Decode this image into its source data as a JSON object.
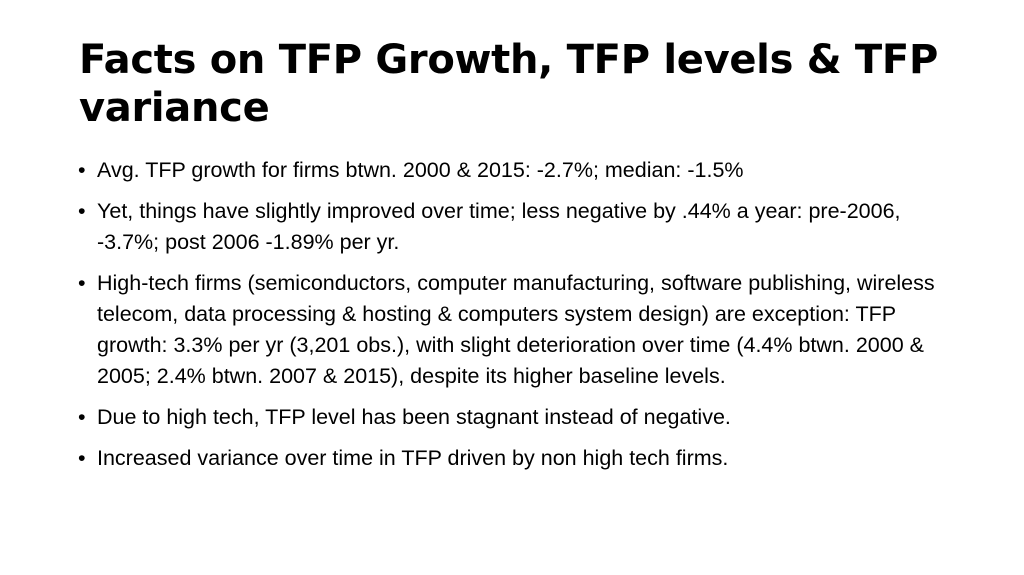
{
  "slide": {
    "title": "Facts on TFP Growth, TFP levels & TFP variance",
    "bullet_glyph": "•",
    "bullets": [
      "Avg. TFP growth for firms btwn. 2000 & 2015: -2.7%; median: -1.5%",
      "Yet, things have slightly improved over time; less negative by .44% a year: pre-2006, -3.7%; post 2006 -1.89% per yr.",
      "High-tech firms (semiconductors, computer manufacturing, software publishing, wireless telecom, data processing & hosting & computers system design) are exception: TFP growth: 3.3% per yr (3,201 obs.), with slight deterioration over time (4.4% btwn. 2000 & 2005; 2.4% btwn. 2007 & 2015), despite its higher baseline levels.",
      "Due to high tech, TFP level has been stagnant instead of negative.",
      "Increased variance over time in TFP driven by non high tech firms."
    ]
  }
}
